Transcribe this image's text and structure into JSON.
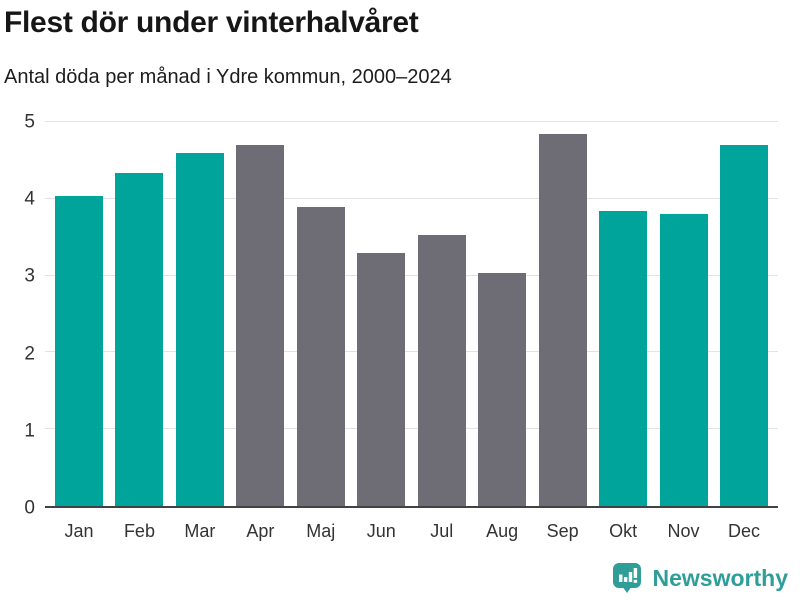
{
  "header": {
    "title": "Flest dör under vinterhalvåret",
    "subtitle": "Antal döda per månad i Ydre kommun, 2000–2024"
  },
  "chart_data": {
    "type": "bar",
    "title": "Flest dör under vinterhalvåret",
    "subtitle": "Antal döda per månad i Ydre kommun, 2000–2024",
    "categories": [
      "Jan",
      "Feb",
      "Mar",
      "Apr",
      "Maj",
      "Jun",
      "Jul",
      "Aug",
      "Sep",
      "Okt",
      "Nov",
      "Dec"
    ],
    "values": [
      4.04,
      4.33,
      4.6,
      4.7,
      3.89,
      3.29,
      3.53,
      3.04,
      4.85,
      3.84,
      3.8,
      4.7
    ],
    "bar_color_keys": [
      "winter",
      "winter",
      "winter",
      "summer",
      "summer",
      "summer",
      "summer",
      "summer",
      "summer",
      "winter",
      "winter",
      "winter"
    ],
    "palette": {
      "winter": "#00a49b",
      "summer": "#6e6d76"
    },
    "xlabel": "",
    "ylabel": "",
    "ylim": [
      0,
      5
    ],
    "yticks": [
      0,
      1,
      2,
      3,
      4,
      5
    ],
    "grid": true,
    "legend": "none"
  },
  "footer": {
    "brand": "Newsworthy",
    "brand_color": "#2f9e99",
    "logo_icon": "speech-bubble-bar-chart-icon"
  }
}
